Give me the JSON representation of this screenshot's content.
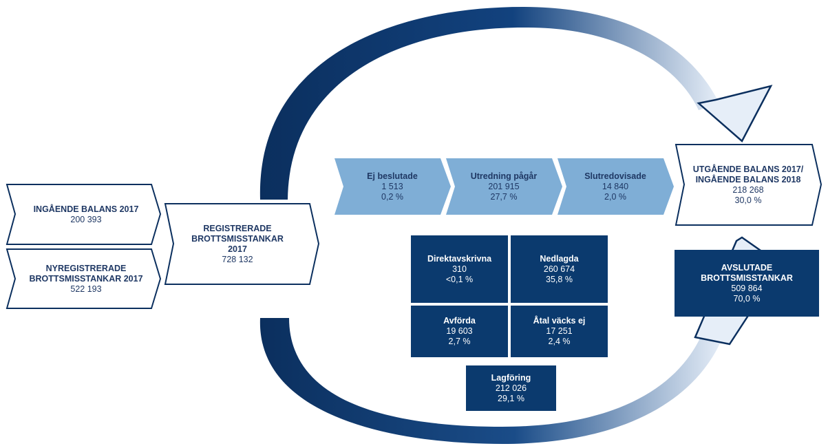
{
  "inputs": [
    {
      "title": "INGÅENDE BALANS 2017",
      "value": "200 393"
    },
    {
      "title": "NYREGISTRERADE BROTTSMISSTANKAR 2017",
      "value": "522 193"
    }
  ],
  "registered": {
    "title": "REGISTRERADE BROTTSMISSTANKAR 2017",
    "value": "728 132"
  },
  "pending": [
    {
      "title": "Ej beslutade",
      "value": "1 513",
      "share": "0,2 %"
    },
    {
      "title": "Utredning pågår",
      "value": "201 915",
      "share": "27,7 %"
    },
    {
      "title": "Slutredovisade",
      "value": "14 840",
      "share": "2,0 %"
    }
  ],
  "outgoing": {
    "title": "UTGÅENDE BALANS 2017/ INGÅENDE BALANS 2018",
    "value": "218 268",
    "share": "30,0 %"
  },
  "closed": [
    {
      "title": "Direktavskrivna",
      "value": "310",
      "share": "<0,1 %"
    },
    {
      "title": "Nedlagda",
      "value": "260 674",
      "share": "35,8 %"
    },
    {
      "title": "Avförda",
      "value": "19 603",
      "share": "2,7 %"
    },
    {
      "title": "Åtal väcks ej",
      "value": "17 251",
      "share": "2,4 %"
    },
    {
      "title": "Lagföring",
      "value": "212 026",
      "share": "29,1 %"
    }
  ],
  "closed_total": {
    "title": "AVSLUTADE BROTTSMISSTANKAR",
    "value": "509 864",
    "share": "70,0 %"
  }
}
